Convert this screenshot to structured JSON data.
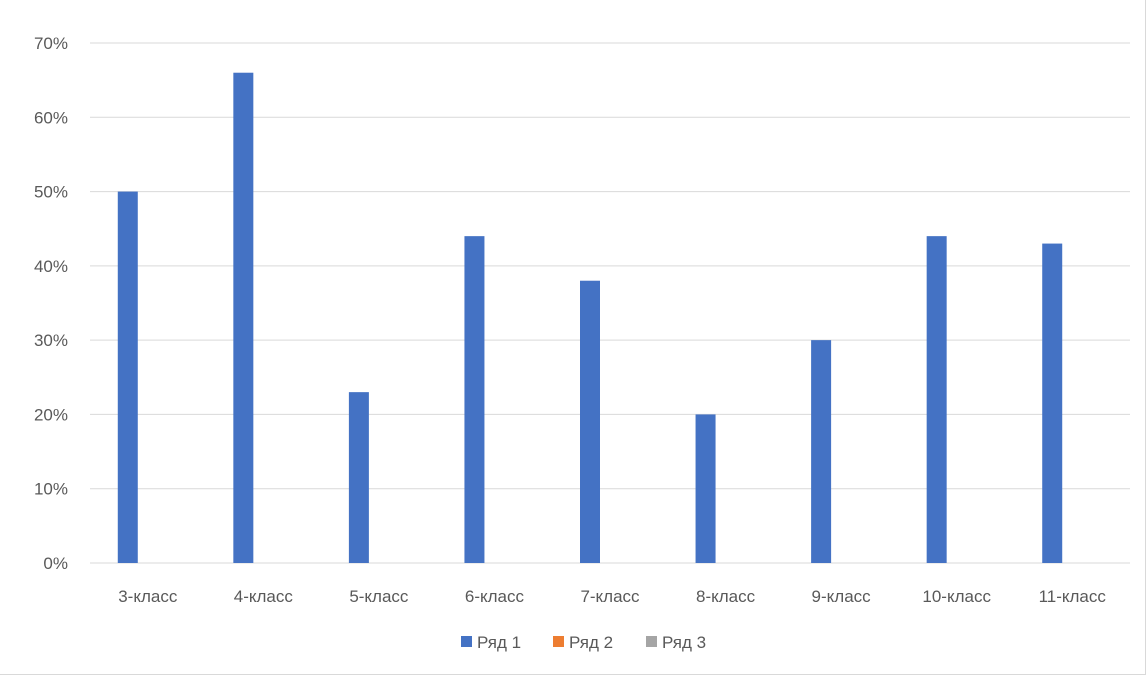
{
  "chart_data": {
    "type": "bar",
    "categories": [
      "3-класс",
      "4-класс",
      "5-класс",
      "6-класс",
      "7-класс",
      "8-класс",
      "9-класс",
      "10-класс",
      "11-класс"
    ],
    "series": [
      {
        "name": "Ряд 1",
        "color": "#4472c4",
        "values": [
          0.5,
          0.66,
          0.23,
          0.44,
          0.38,
          0.2,
          0.3,
          0.44,
          0.43
        ]
      },
      {
        "name": "Ряд 2",
        "color": "#ed7d31",
        "values": [
          0,
          0,
          0,
          0,
          0,
          0,
          0,
          0,
          0
        ]
      },
      {
        "name": "Ряд 3",
        "color": "#a5a5a5",
        "values": [
          0,
          0,
          0,
          0,
          0,
          0,
          0,
          0,
          0
        ]
      }
    ],
    "ylim": [
      0,
      0.7
    ],
    "yticks": [
      0,
      0.1,
      0.2,
      0.3,
      0.4,
      0.5,
      0.6,
      0.7
    ],
    "ytick_labels": [
      "0%",
      "10%",
      "20%",
      "30%",
      "40%",
      "50%",
      "60%",
      "70%"
    ],
    "grid": true,
    "legend": "bottom"
  }
}
